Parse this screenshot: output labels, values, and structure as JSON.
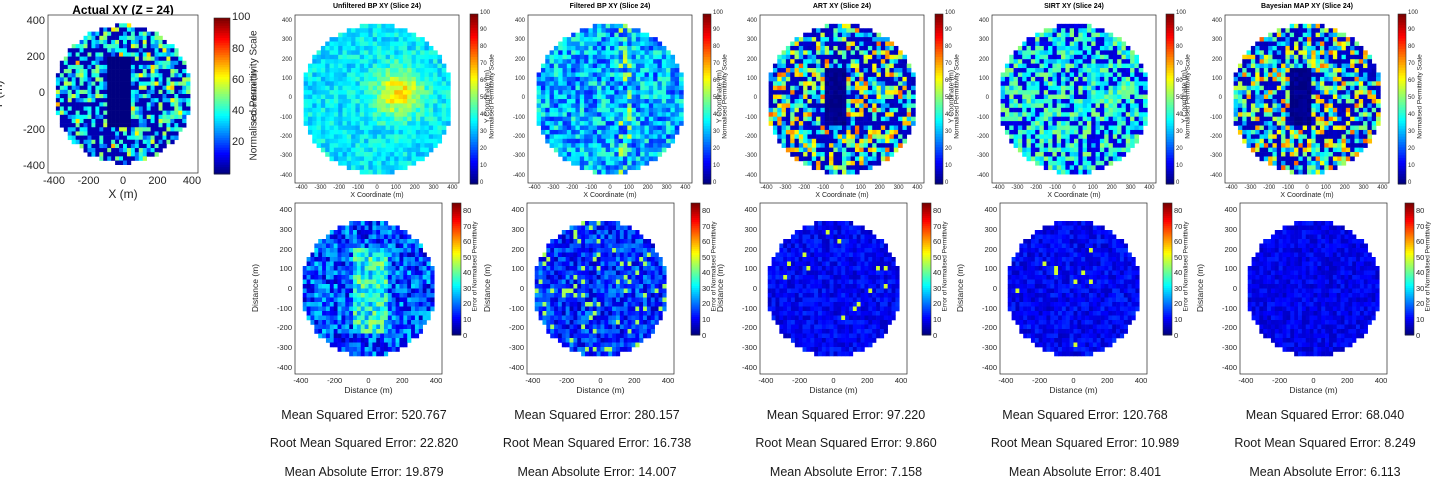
{
  "colormap": "jet",
  "background_color": "#00008f",
  "plots": [
    {
      "id": "actual",
      "title": "Actual XY (Z = 24)",
      "xlabel": "X (m)",
      "ylabel": "Y (m)",
      "cbar_label": "Normalised Permittivity Scale",
      "cbar_range": [
        0,
        100
      ],
      "cbar_ticks": [
        "20",
        "40",
        "60",
        "80",
        "100"
      ],
      "xticks": [
        "-400",
        "-200",
        "0",
        "200",
        "400"
      ],
      "yticks": [
        "400",
        "200",
        "0",
        "-200",
        "-400"
      ]
    },
    {
      "id": "unfiltered_bp",
      "title": "Unfiltered BP XY (Slice 24)",
      "xlabel": "X Coordinate (m)",
      "ylabel": "Y Coordinate (m)",
      "cbar_label": "Normalised Permittivity Scale",
      "cbar_range": [
        0,
        100
      ],
      "cbar_ticks": [
        "0",
        "10",
        "20",
        "30",
        "40",
        "50",
        "60",
        "70",
        "80",
        "90",
        "100"
      ],
      "xticks": [
        "-400",
        "-300",
        "-200",
        "-100",
        "0",
        "100",
        "200",
        "300",
        "400"
      ],
      "yticks": [
        "400",
        "300",
        "200",
        "100",
        "0",
        "-100",
        "-200",
        "-300",
        "-400"
      ]
    },
    {
      "id": "filtered_bp",
      "title": "Filtered BP XY (Slice 24)",
      "xlabel": "X Coordinate (m)",
      "ylabel": "Y Coordinate (m)",
      "cbar_label": "Normalised Permittivity Scale",
      "cbar_range": [
        0,
        100
      ],
      "cbar_ticks": [
        "0",
        "10",
        "20",
        "30",
        "40",
        "50",
        "60",
        "70",
        "80",
        "90",
        "100"
      ],
      "xticks": [
        "-400",
        "-300",
        "-200",
        "-100",
        "0",
        "100",
        "200",
        "300",
        "400"
      ],
      "yticks": [
        "400",
        "300",
        "200",
        "100",
        "0",
        "-100",
        "-200",
        "-300",
        "-400"
      ]
    },
    {
      "id": "art",
      "title": "ART XY (Slice 24)",
      "xlabel": "X Coordinate (m)",
      "ylabel": "Y Coordinate (m)",
      "cbar_label": "Normalised Permittivity Scale",
      "cbar_range": [
        0,
        100
      ],
      "cbar_ticks": [
        "0",
        "10",
        "20",
        "30",
        "40",
        "50",
        "60",
        "70",
        "80",
        "90",
        "100"
      ],
      "xticks": [
        "-400",
        "-300",
        "-200",
        "-100",
        "0",
        "100",
        "200",
        "300",
        "400"
      ],
      "yticks": [
        "400",
        "300",
        "200",
        "100",
        "0",
        "-100",
        "-200",
        "-300",
        "-400"
      ]
    },
    {
      "id": "sirt",
      "title": "SIRT XY (Slice 24)",
      "xlabel": "X Coordinate (m)",
      "ylabel": "Y Coordinate (m)",
      "cbar_label": "Normalised Permittivity Scale",
      "cbar_range": [
        0,
        100
      ],
      "cbar_ticks": [
        "0",
        "10",
        "20",
        "30",
        "40",
        "50",
        "60",
        "70",
        "80",
        "90",
        "100"
      ],
      "xticks": [
        "-400",
        "-300",
        "-200",
        "-100",
        "0",
        "100",
        "200",
        "300",
        "400"
      ],
      "yticks": [
        "400",
        "300",
        "200",
        "100",
        "0",
        "-100",
        "-200",
        "-300",
        "-400"
      ]
    },
    {
      "id": "bayesian_map",
      "title": "Bayesian MAP XY (Slice 24)",
      "xlabel": "X Coordinate (m)",
      "ylabel": "Y Coordinate (m)",
      "cbar_label": "Normalised Permittivity Scale",
      "cbar_range": [
        0,
        100
      ],
      "cbar_ticks": [
        "0",
        "10",
        "20",
        "30",
        "40",
        "50",
        "60",
        "70",
        "80",
        "90",
        "100"
      ],
      "xticks": [
        "-400",
        "-300",
        "-200",
        "-100",
        "0",
        "100",
        "200",
        "300",
        "400"
      ],
      "yticks": [
        "400",
        "300",
        "200",
        "100",
        "0",
        "-100",
        "-200",
        "-300",
        "-400"
      ]
    },
    {
      "id": "err_unfiltered_bp",
      "title": "",
      "xlabel": "Distance (m)",
      "ylabel": "Distance (m)",
      "cbar_label": "Error of Normalised Permittivity",
      "cbar_range": [
        0,
        85
      ],
      "cbar_ticks": [
        "0",
        "10",
        "20",
        "30",
        "40",
        "50",
        "60",
        "70",
        "80"
      ],
      "xticks": [
        "-400",
        "-200",
        "0",
        "200",
        "400"
      ],
      "yticks": [
        "400",
        "300",
        "200",
        "100",
        "0",
        "-100",
        "-200",
        "-300",
        "-400"
      ]
    },
    {
      "id": "err_filtered_bp",
      "title": "",
      "xlabel": "Distance (m)",
      "ylabel": "Distance (m)",
      "cbar_label": "Error of Normalised Permittivity",
      "cbar_range": [
        0,
        85
      ],
      "cbar_ticks": [
        "0",
        "10",
        "20",
        "30",
        "40",
        "50",
        "60",
        "70",
        "80"
      ],
      "xticks": [
        "-400",
        "-200",
        "0",
        "200",
        "400"
      ],
      "yticks": [
        "400",
        "300",
        "200",
        "100",
        "0",
        "-100",
        "-200",
        "-300",
        "-400"
      ]
    },
    {
      "id": "err_art",
      "title": "",
      "xlabel": "Distance (m)",
      "ylabel": "Distance (m)",
      "cbar_label": "Error of Normalised Permittivity",
      "cbar_range": [
        0,
        85
      ],
      "cbar_ticks": [
        "0",
        "10",
        "20",
        "30",
        "40",
        "50",
        "60",
        "70",
        "80"
      ],
      "xticks": [
        "-400",
        "-200",
        "0",
        "200",
        "400"
      ],
      "yticks": [
        "400",
        "300",
        "200",
        "100",
        "0",
        "-100",
        "-200",
        "-300",
        "-400"
      ]
    },
    {
      "id": "err_sirt",
      "title": "",
      "xlabel": "Distance (m)",
      "ylabel": "Distance (m)",
      "cbar_label": "Error of Normalised Permittivity",
      "cbar_range": [
        0,
        85
      ],
      "cbar_ticks": [
        "0",
        "10",
        "20",
        "30",
        "40",
        "50",
        "60",
        "70",
        "80"
      ],
      "xticks": [
        "-400",
        "-200",
        "0",
        "200",
        "400"
      ],
      "yticks": [
        "400",
        "300",
        "200",
        "100",
        "0",
        "-100",
        "-200",
        "-300",
        "-400"
      ]
    },
    {
      "id": "err_bayesian_map",
      "title": "",
      "xlabel": "Distance (m)",
      "ylabel": "Distance (m)",
      "cbar_label": "Error of Normalised Permittivity",
      "cbar_range": [
        0,
        85
      ],
      "cbar_ticks": [
        "0",
        "10",
        "20",
        "30",
        "40",
        "50",
        "60",
        "70",
        "80"
      ],
      "xticks": [
        "-400",
        "-200",
        "0",
        "200",
        "400"
      ],
      "yticks": [
        "400",
        "300",
        "200",
        "100",
        "0",
        "-100",
        "-200",
        "-300",
        "-400"
      ]
    }
  ],
  "metrics": [
    {
      "method": "Unfiltered BP",
      "mse": "Mean Squared Error: 520.767",
      "rmse": "Root Mean Squared Error: 22.820",
      "mae": "Mean Absolute Error: 19.879"
    },
    {
      "method": "Filtered BP",
      "mse": "Mean Squared Error: 280.157",
      "rmse": "Root Mean Squared Error: 16.738",
      "mae": "Mean Absolute Error: 14.007"
    },
    {
      "method": "ART",
      "mse": "Mean Squared Error: 97.220",
      "rmse": "Root Mean Squared Error: 9.860",
      "mae": "Mean Absolute Error: 7.158"
    },
    {
      "method": "SIRT",
      "mse": "Mean Squared Error: 120.768",
      "rmse": "Root Mean Squared Error: 10.989",
      "mae": "Mean Absolute Error: 8.401"
    },
    {
      "method": "Bayesian MAP",
      "mse": "Mean Squared Error: 68.040",
      "rmse": "Root Mean Squared Error: 8.249",
      "mae": "Mean Absolute Error: 6.113"
    }
  ],
  "chart_data": [
    {
      "type": "heatmap",
      "title": "Actual XY (Z = 24)",
      "xlabel": "X (m)",
      "ylabel": "Y (m)",
      "xlim": [
        -420,
        420
      ],
      "ylim": [
        -420,
        420
      ],
      "clim": [
        0,
        100
      ],
      "colorbar_label": "Normalised Permittivity Scale",
      "domain": "disk radius 400"
    },
    {
      "type": "heatmap",
      "title": "Unfiltered BP XY (Slice 24)",
      "xlabel": "X Coordinate (m)",
      "ylabel": "Y Coordinate (m)",
      "xlim": [
        -420,
        420
      ],
      "ylim": [
        -420,
        420
      ],
      "clim": [
        0,
        100
      ],
      "colorbar_label": "Normalised Permittivity Scale"
    },
    {
      "type": "heatmap",
      "title": "Filtered BP XY (Slice 24)",
      "xlabel": "X Coordinate (m)",
      "ylabel": "Y Coordinate (m)",
      "xlim": [
        -420,
        420
      ],
      "ylim": [
        -420,
        420
      ],
      "clim": [
        0,
        100
      ],
      "colorbar_label": "Normalised Permittivity Scale"
    },
    {
      "type": "heatmap",
      "title": "ART XY (Slice 24)",
      "xlabel": "X Coordinate (m)",
      "ylabel": "Y Coordinate (m)",
      "xlim": [
        -420,
        420
      ],
      "ylim": [
        -420,
        420
      ],
      "clim": [
        0,
        100
      ],
      "colorbar_label": "Normalised Permittivity Scale"
    },
    {
      "type": "heatmap",
      "title": "SIRT XY (Slice 24)",
      "xlabel": "X Coordinate (m)",
      "ylabel": "Y Coordinate (m)",
      "xlim": [
        -420,
        420
      ],
      "ylim": [
        -420,
        420
      ],
      "clim": [
        0,
        100
      ],
      "colorbar_label": "Normalised Permittivity Scale"
    },
    {
      "type": "heatmap",
      "title": "Bayesian MAP XY (Slice 24)",
      "xlabel": "X Coordinate (m)",
      "ylabel": "Y Coordinate (m)",
      "xlim": [
        -420,
        420
      ],
      "ylim": [
        -420,
        420
      ],
      "clim": [
        0,
        100
      ],
      "colorbar_label": "Normalised Permittivity Scale"
    },
    {
      "type": "heatmap",
      "xlabel": "Distance (m)",
      "ylabel": "Distance (m)",
      "xlim": [
        -420,
        420
      ],
      "ylim": [
        -420,
        420
      ],
      "clim": [
        0,
        85
      ],
      "colorbar_label": "Error of Normalised Permittivity"
    },
    {
      "type": "heatmap",
      "xlabel": "Distance (m)",
      "ylabel": "Distance (m)",
      "xlim": [
        -420,
        420
      ],
      "ylim": [
        -420,
        420
      ],
      "clim": [
        0,
        85
      ],
      "colorbar_label": "Error of Normalised Permittivity"
    },
    {
      "type": "heatmap",
      "xlabel": "Distance (m)",
      "ylabel": "Distance (m)",
      "xlim": [
        -420,
        420
      ],
      "ylim": [
        -420,
        420
      ],
      "clim": [
        0,
        85
      ],
      "colorbar_label": "Error of Normalised Permittivity"
    },
    {
      "type": "heatmap",
      "xlabel": "Distance (m)",
      "ylabel": "Distance (m)",
      "xlim": [
        -420,
        420
      ],
      "ylim": [
        -420,
        420
      ],
      "clim": [
        0,
        85
      ],
      "colorbar_label": "Error of Normalised Permittivity"
    },
    {
      "type": "heatmap",
      "xlabel": "Distance (m)",
      "ylabel": "Distance (m)",
      "xlim": [
        -420,
        420
      ],
      "ylim": [
        -420,
        420
      ],
      "clim": [
        0,
        85
      ],
      "colorbar_label": "Error of Normalised Permittivity"
    }
  ]
}
